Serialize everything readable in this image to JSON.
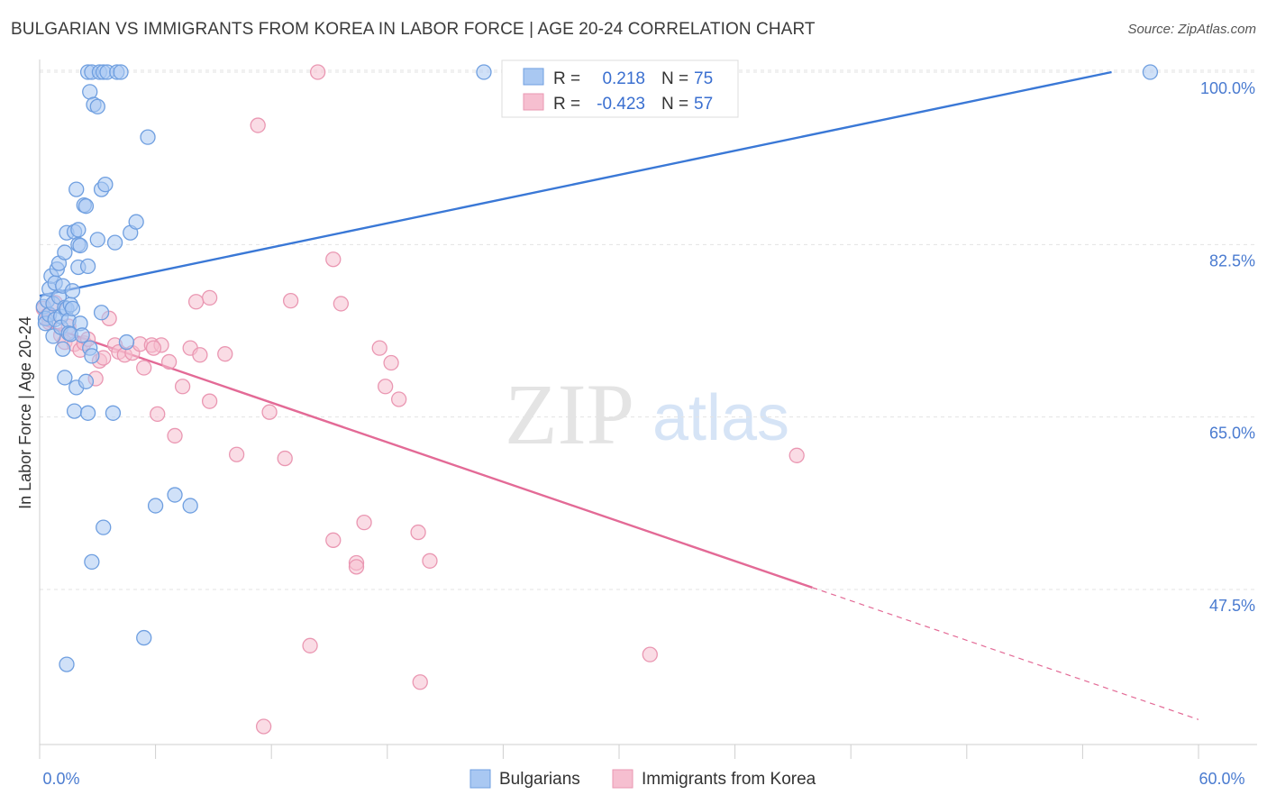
{
  "header": {
    "title": "BULGARIAN VS IMMIGRANTS FROM KOREA IN LABOR FORCE | AGE 20-24 CORRELATION CHART",
    "source": "Source: ZipAtlas.com"
  },
  "watermark": {
    "zip": "ZIP",
    "atlas": "atlas"
  },
  "colors": {
    "blue_fill": "#a9c8f2",
    "blue_stroke": "#6f9fe0",
    "blue_line": "#3a78d6",
    "pink_fill": "#f6bfd0",
    "pink_stroke": "#ea97b2",
    "pink_line": "#e36a96",
    "grid": "#e3e3e3",
    "axis_text": "#4a7bd0"
  },
  "legend": {
    "rows": [
      {
        "r_label": "R =",
        "r_value": "0.218",
        "n_label": "N =",
        "n_value": "75"
      },
      {
        "r_label": "R =",
        "r_value": "-0.423",
        "n_label": "N =",
        "n_value": "57"
      }
    ]
  },
  "chart_data": {
    "type": "scatter",
    "title": "BULGARIAN VS IMMIGRANTS FROM KOREA IN LABOR FORCE | AGE 20-24 CORRELATION CHART",
    "xlabel": "",
    "ylabel": "In Labor Force | Age 20-24",
    "xlim": [
      0,
      60
    ],
    "ylim": [
      33,
      102
    ],
    "x_tick_labels": [
      "0.0%",
      "60.0%"
    ],
    "y_ticks": [
      100,
      82.5,
      65,
      47.5
    ],
    "y_tick_labels": [
      "100.0%",
      "82.5%",
      "65.0%",
      "47.5%"
    ],
    "grid": true,
    "series": [
      {
        "name": "Bulgarians",
        "r": 0.218,
        "n": 75,
        "trend": {
          "x": [
            0,
            55.5
          ],
          "y": [
            77.3,
            100.0
          ],
          "dashed_to": null
        },
        "points": [
          [
            0.2,
            76.2
          ],
          [
            0.3,
            75.0
          ],
          [
            0.3,
            74.5
          ],
          [
            0.4,
            76.8
          ],
          [
            0.5,
            78.0
          ],
          [
            0.5,
            75.4
          ],
          [
            0.6,
            79.3
          ],
          [
            0.7,
            73.2
          ],
          [
            0.7,
            76.5
          ],
          [
            0.8,
            78.6
          ],
          [
            0.8,
            74.9
          ],
          [
            0.9,
            80.0
          ],
          [
            1.0,
            77.2
          ],
          [
            1.0,
            80.6
          ],
          [
            1.1,
            75.2
          ],
          [
            1.1,
            74.1
          ],
          [
            1.2,
            78.3
          ],
          [
            1.2,
            71.9
          ],
          [
            1.3,
            76.1
          ],
          [
            1.3,
            69.0
          ],
          [
            1.4,
            83.7
          ],
          [
            1.4,
            76.0
          ],
          [
            1.5,
            74.8
          ],
          [
            1.5,
            73.5
          ],
          [
            1.6,
            76.4
          ],
          [
            1.6,
            73.4
          ],
          [
            1.7,
            77.8
          ],
          [
            1.7,
            76.0
          ],
          [
            1.8,
            83.8
          ],
          [
            1.8,
            65.6
          ],
          [
            1.9,
            88.1
          ],
          [
            1.9,
            68.0
          ],
          [
            2.0,
            82.5
          ],
          [
            2.0,
            80.2
          ],
          [
            2.1,
            82.4
          ],
          [
            2.1,
            74.5
          ],
          [
            2.2,
            73.3
          ],
          [
            2.3,
            86.5
          ],
          [
            2.4,
            86.4
          ],
          [
            2.4,
            68.6
          ],
          [
            2.5,
            80.3
          ],
          [
            2.5,
            65.4
          ],
          [
            2.5,
            100.0
          ],
          [
            2.6,
            98.0
          ],
          [
            2.6,
            72.0
          ],
          [
            2.7,
            100.0
          ],
          [
            2.7,
            71.2
          ],
          [
            2.8,
            96.7
          ],
          [
            3.0,
            96.5
          ],
          [
            3.0,
            83.0
          ],
          [
            3.1,
            100.0
          ],
          [
            3.2,
            88.1
          ],
          [
            3.3,
            100.0
          ],
          [
            3.4,
            88.6
          ],
          [
            3.5,
            100.0
          ],
          [
            3.8,
            65.4
          ],
          [
            3.9,
            82.7
          ],
          [
            4.0,
            100.0
          ],
          [
            4.2,
            100.0
          ],
          [
            4.5,
            72.6
          ],
          [
            4.7,
            83.7
          ],
          [
            5.0,
            84.8
          ],
          [
            5.6,
            93.4
          ],
          [
            6.0,
            56.0
          ],
          [
            7.0,
            57.1
          ],
          [
            7.8,
            56.0
          ],
          [
            3.3,
            53.8
          ],
          [
            2.7,
            50.3
          ],
          [
            5.4,
            42.6
          ],
          [
            1.4,
            39.9
          ],
          [
            23.0,
            100.0
          ],
          [
            57.5,
            100.0
          ],
          [
            2.0,
            84.0
          ],
          [
            1.3,
            81.7
          ],
          [
            3.2,
            75.6
          ]
        ]
      },
      {
        "name": "Immigrants from Korea",
        "r": -0.423,
        "n": 57,
        "trend": {
          "x": [
            0,
            40.0
          ],
          "y": [
            74.5,
            47.7
          ],
          "dashed_to": [
            60.0,
            34.3
          ]
        },
        "points": [
          [
            0.2,
            76.0
          ],
          [
            0.4,
            75.3
          ],
          [
            0.5,
            74.6
          ],
          [
            0.8,
            76.6
          ],
          [
            1.1,
            73.3
          ],
          [
            1.3,
            72.6
          ],
          [
            1.5,
            74.2
          ],
          [
            1.8,
            72.4
          ],
          [
            2.1,
            71.8
          ],
          [
            2.3,
            72.5
          ],
          [
            2.5,
            72.9
          ],
          [
            2.9,
            68.9
          ],
          [
            3.1,
            70.7
          ],
          [
            3.3,
            71.0
          ],
          [
            3.6,
            75.0
          ],
          [
            3.9,
            72.3
          ],
          [
            4.1,
            71.6
          ],
          [
            4.4,
            71.3
          ],
          [
            4.8,
            71.5
          ],
          [
            5.2,
            72.4
          ],
          [
            5.4,
            70.0
          ],
          [
            5.8,
            72.3
          ],
          [
            6.1,
            65.3
          ],
          [
            6.3,
            72.3
          ],
          [
            6.7,
            70.6
          ],
          [
            7.0,
            63.1
          ],
          [
            7.4,
            68.1
          ],
          [
            7.8,
            72.0
          ],
          [
            8.3,
            71.3
          ],
          [
            8.8,
            66.6
          ],
          [
            8.8,
            77.1
          ],
          [
            9.6,
            71.4
          ],
          [
            10.2,
            61.2
          ],
          [
            11.3,
            94.6
          ],
          [
            11.9,
            65.5
          ],
          [
            12.7,
            60.8
          ],
          [
            13.0,
            76.8
          ],
          [
            14.4,
            100.0
          ],
          [
            15.2,
            81.0
          ],
          [
            15.2,
            52.5
          ],
          [
            15.6,
            76.5
          ],
          [
            16.4,
            50.2
          ],
          [
            16.4,
            49.8
          ],
          [
            16.8,
            54.3
          ],
          [
            17.6,
            72.0
          ],
          [
            18.2,
            70.5
          ],
          [
            18.6,
            66.8
          ],
          [
            19.6,
            53.3
          ],
          [
            20.2,
            50.4
          ],
          [
            19.7,
            38.1
          ],
          [
            17.9,
            68.1
          ],
          [
            14.0,
            41.8
          ],
          [
            11.6,
            33.6
          ],
          [
            39.2,
            61.1
          ],
          [
            31.6,
            40.9
          ],
          [
            5.9,
            72.0
          ],
          [
            8.1,
            76.7
          ]
        ]
      }
    ]
  },
  "bottom_legend": {
    "items": [
      {
        "label": "Bulgarians"
      },
      {
        "label": "Immigrants from Korea"
      }
    ]
  }
}
